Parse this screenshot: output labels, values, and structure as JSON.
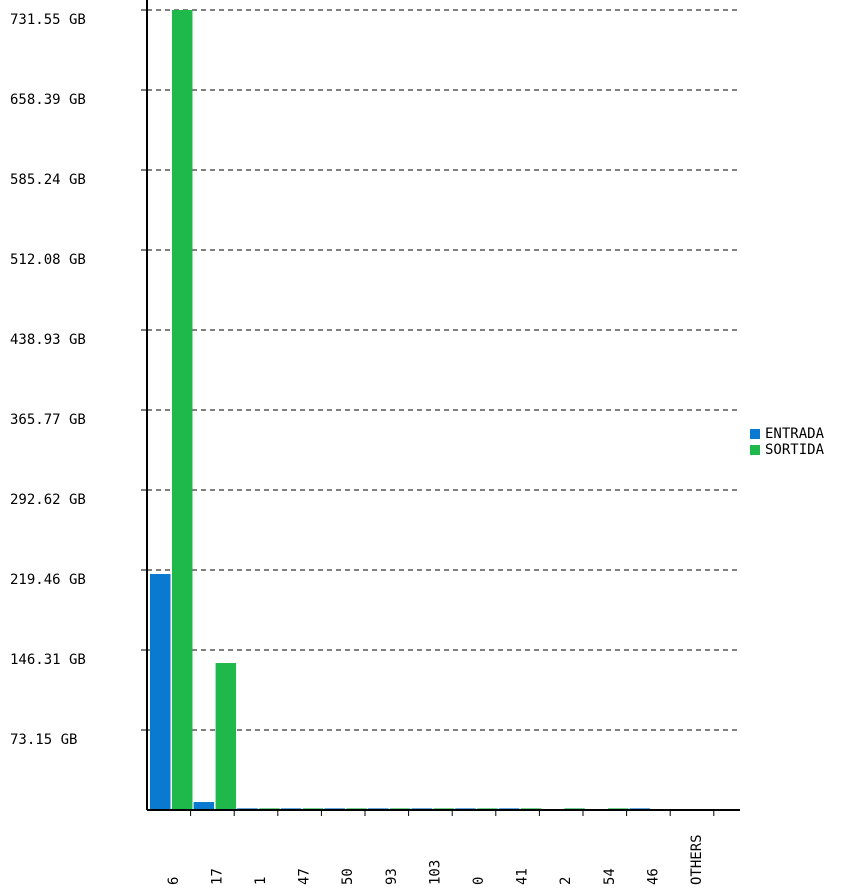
{
  "chart_data": {
    "type": "bar",
    "categories": [
      "6",
      "17",
      "1",
      "47",
      "50",
      "93",
      "103",
      "0",
      "41",
      "2",
      "54",
      "46",
      "OTHERS"
    ],
    "series": [
      {
        "name": "ENTRADA",
        "color": "#0a7ad0",
        "values": [
          215.8,
          7.3,
          1.5,
          1.5,
          1.5,
          1.5,
          1.5,
          1.5,
          1.5,
          0,
          0,
          1.5,
          0
        ]
      },
      {
        "name": "SORTIDA",
        "color": "#1fb84a",
        "values": [
          731.55,
          134.4,
          1.5,
          1.5,
          1.5,
          1.5,
          1.5,
          1.5,
          1.5,
          1.5,
          1.5,
          0,
          0
        ]
      }
    ],
    "ylim": [
      0,
      731.55
    ],
    "yticks": [
      {
        "value": 73.15,
        "label": "73.15 GB"
      },
      {
        "value": 146.31,
        "label": "146.31 GB"
      },
      {
        "value": 219.46,
        "label": "219.46 GB"
      },
      {
        "value": 292.62,
        "label": "292.62 GB"
      },
      {
        "value": 365.77,
        "label": "365.77 GB"
      },
      {
        "value": 438.93,
        "label": "438.93 GB"
      },
      {
        "value": 512.08,
        "label": "512.08 GB"
      },
      {
        "value": 585.24,
        "label": "585.24 GB"
      },
      {
        "value": 658.39,
        "label": "658.39 GB"
      },
      {
        "value": 731.55,
        "label": "731.55 GB"
      }
    ],
    "grid": true,
    "legend": "right"
  }
}
